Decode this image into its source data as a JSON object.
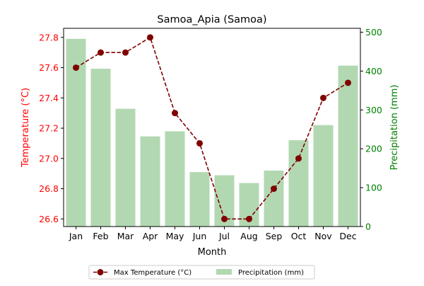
{
  "chart_data": {
    "type": "bar",
    "title": "Samoa_Apia (Samoa)",
    "xlabel": "Month",
    "categories": [
      "Jan",
      "Feb",
      "Mar",
      "Apr",
      "May",
      "Jun",
      "Jul",
      "Aug",
      "Sep",
      "Oct",
      "Nov",
      "Dec"
    ],
    "y_left": {
      "label": "Temperature (°C)",
      "ylim": [
        26.55,
        27.86
      ],
      "ticks": [
        "26.6",
        "26.8",
        "27.0",
        "27.2",
        "27.4",
        "27.6",
        "27.8"
      ],
      "color": "#ff0000"
    },
    "y_right": {
      "label": "Precipitation (mm)",
      "ylim": [
        0,
        510
      ],
      "ticks": [
        "0",
        "100",
        "200",
        "300",
        "400",
        "500"
      ],
      "color": "#008000"
    },
    "series": [
      {
        "name": "Max Temperature (°C)",
        "type": "line",
        "axis": "left",
        "color": "#800000",
        "values": [
          27.6,
          27.7,
          27.7,
          27.8,
          27.3,
          27.1,
          26.6,
          26.6,
          26.8,
          27.0,
          27.4,
          27.5
        ]
      },
      {
        "name": "Precipitation (mm)",
        "type": "bar",
        "axis": "right",
        "color": "#b2d8b2",
        "values": [
          483,
          406,
          303,
          232,
          245,
          140,
          132,
          112,
          144,
          222,
          261,
          414
        ]
      }
    ],
    "legend_position": "bottom-center",
    "grid": false
  }
}
